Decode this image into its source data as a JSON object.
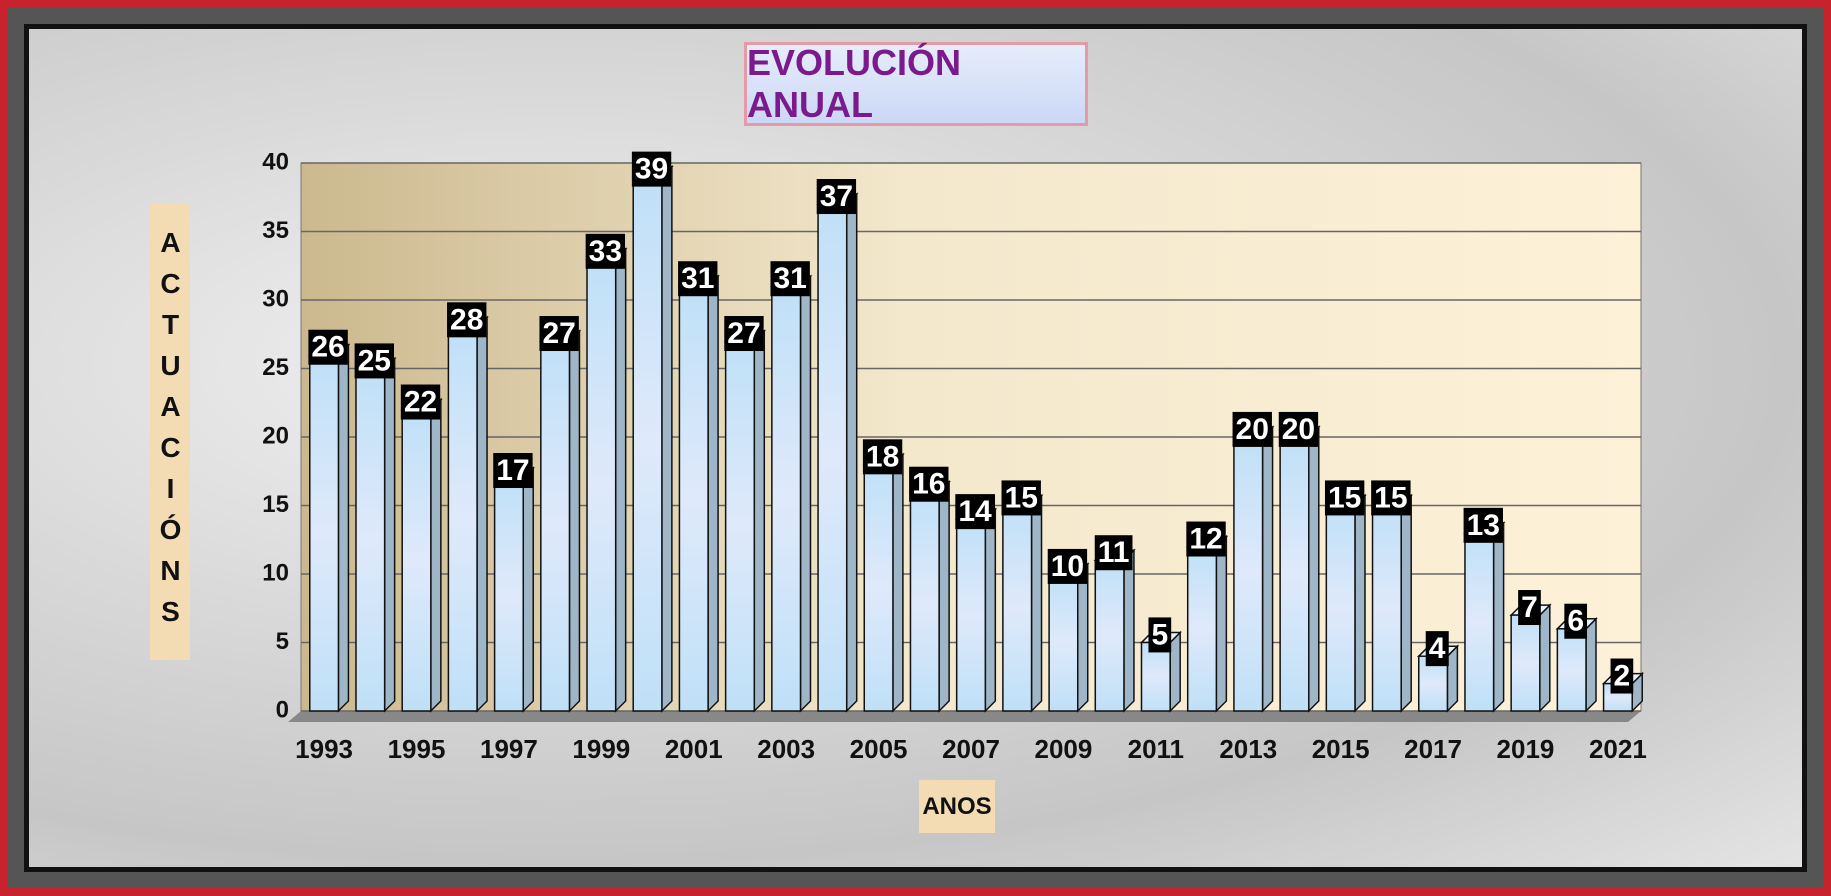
{
  "chart_data": {
    "type": "bar",
    "title": "EVOLUCIÓN ANUAL",
    "y_axis_label": "ACTUACIÓNS",
    "x_axis_label": "ANOS",
    "categories": [
      "1993",
      null,
      "1995",
      null,
      "1997",
      null,
      "1999",
      null,
      "2001",
      null,
      "2003",
      null,
      "2005",
      null,
      "2007",
      null,
      "2009",
      null,
      "2011",
      null,
      "2013",
      null,
      "2015",
      null,
      "2017",
      null,
      "2019",
      null,
      "2021"
    ],
    "values": [
      26,
      25,
      22,
      28,
      17,
      27,
      33,
      39,
      31,
      27,
      31,
      37,
      18,
      16,
      14,
      15,
      10,
      11,
      5,
      12,
      20,
      20,
      15,
      15,
      4,
      13,
      7,
      6,
      2
    ],
    "color": "#cfe6f7",
    "ylim": [
      0,
      40
    ],
    "yticks": [
      0,
      5,
      10,
      15,
      20,
      25,
      30,
      35,
      40
    ],
    "grid": true
  }
}
